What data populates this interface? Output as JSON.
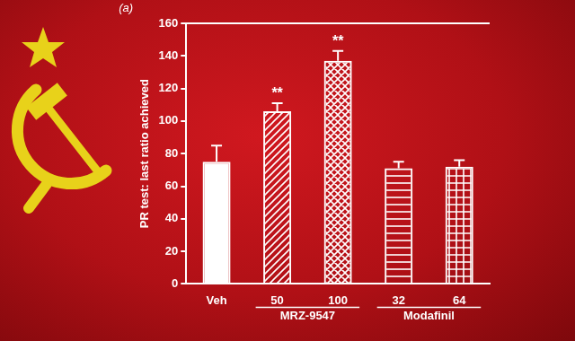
{
  "chart_data": {
    "type": "bar",
    "panel_label": "(a)",
    "y_label": "PR test: last ratio achieved",
    "categories": [
      "Veh",
      "50",
      "100",
      "32",
      "64"
    ],
    "values": [
      75,
      106,
      137,
      71,
      72
    ],
    "errors": [
      10,
      5,
      6,
      4,
      4
    ],
    "color": "#ffffff",
    "groups": [
      {
        "label": "MRZ-9547",
        "categories": [
          "50",
          "100"
        ]
      },
      {
        "label": "Modafinil",
        "categories": [
          "32",
          "64"
        ]
      }
    ],
    "annotations": [
      {
        "text": "**",
        "category": "50"
      },
      {
        "text": "**",
        "category": "100"
      }
    ],
    "ylim": [
      0,
      160
    ],
    "yticks": [
      0,
      20,
      40,
      60,
      80,
      100,
      120,
      140,
      160
    ],
    "grid": false
  }
}
